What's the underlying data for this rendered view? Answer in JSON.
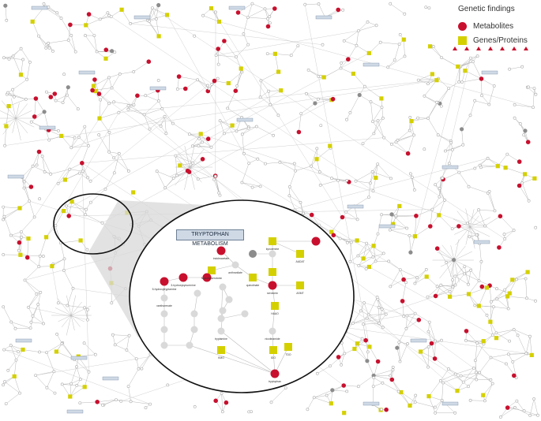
{
  "legend": {
    "title": "Genetic findings",
    "metabolites": "Metabolites",
    "genes": "Genes/Proteins"
  },
  "inset": {
    "title": "TRYPTOPHAN METABOLISM",
    "labels": [
      "indoleacetate",
      "kynurenine",
      "quinolinate",
      "anthranilate",
      "N-acetylserotonin",
      "3-hydroxykynurenine",
      "kynuramine",
      "AADAT",
      "5-hydroxytryptamine",
      "melatonin",
      "xanthurenate",
      "KMO",
      "indole",
      "tryptophan",
      "formylkynurenine",
      "TDO",
      "IDO",
      "L-tryptophan",
      "AANAT",
      "KYNU",
      "ASMT",
      "HAAO",
      "serotonin",
      "nicotinamide",
      "tryptamine"
    ]
  },
  "colors": {
    "metabolite": "#c8102e",
    "gene": "#d4d000",
    "node": "#d9d9d9",
    "inactive": "#8c8c8c",
    "box": "#cfd9e6"
  }
}
